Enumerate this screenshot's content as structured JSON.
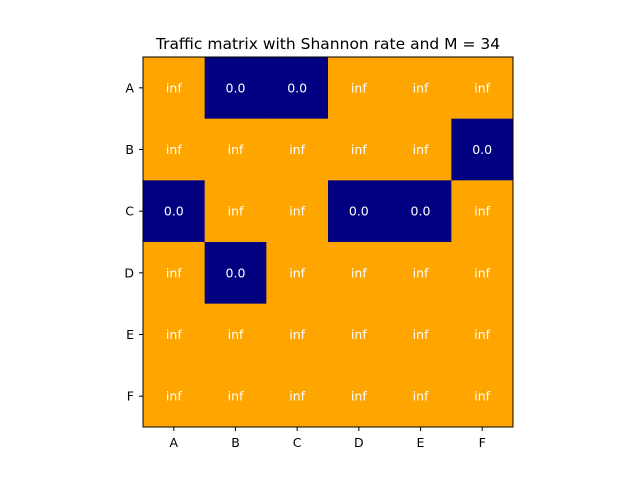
{
  "chart_data": {
    "type": "heatmap",
    "title": "Traffic matrix with Shannon rate and M = 34",
    "x_categories": [
      "A",
      "B",
      "C",
      "D",
      "E",
      "F"
    ],
    "y_categories": [
      "A",
      "B",
      "C",
      "D",
      "E",
      "F"
    ],
    "values": [
      [
        "inf",
        "0.0",
        "0.0",
        "inf",
        "inf",
        "inf"
      ],
      [
        "inf",
        "inf",
        "inf",
        "inf",
        "inf",
        "0.0"
      ],
      [
        "0.0",
        "inf",
        "inf",
        "0.0",
        "0.0",
        "inf"
      ],
      [
        "inf",
        "0.0",
        "inf",
        "inf",
        "inf",
        "inf"
      ],
      [
        "inf",
        "inf",
        "inf",
        "inf",
        "inf",
        "inf"
      ],
      [
        "inf",
        "inf",
        "inf",
        "inf",
        "inf",
        "inf"
      ]
    ],
    "colors": {
      "inf": "#ffa500",
      "0.0": "#000080"
    },
    "label_color": "#ffffff",
    "grid": false
  }
}
